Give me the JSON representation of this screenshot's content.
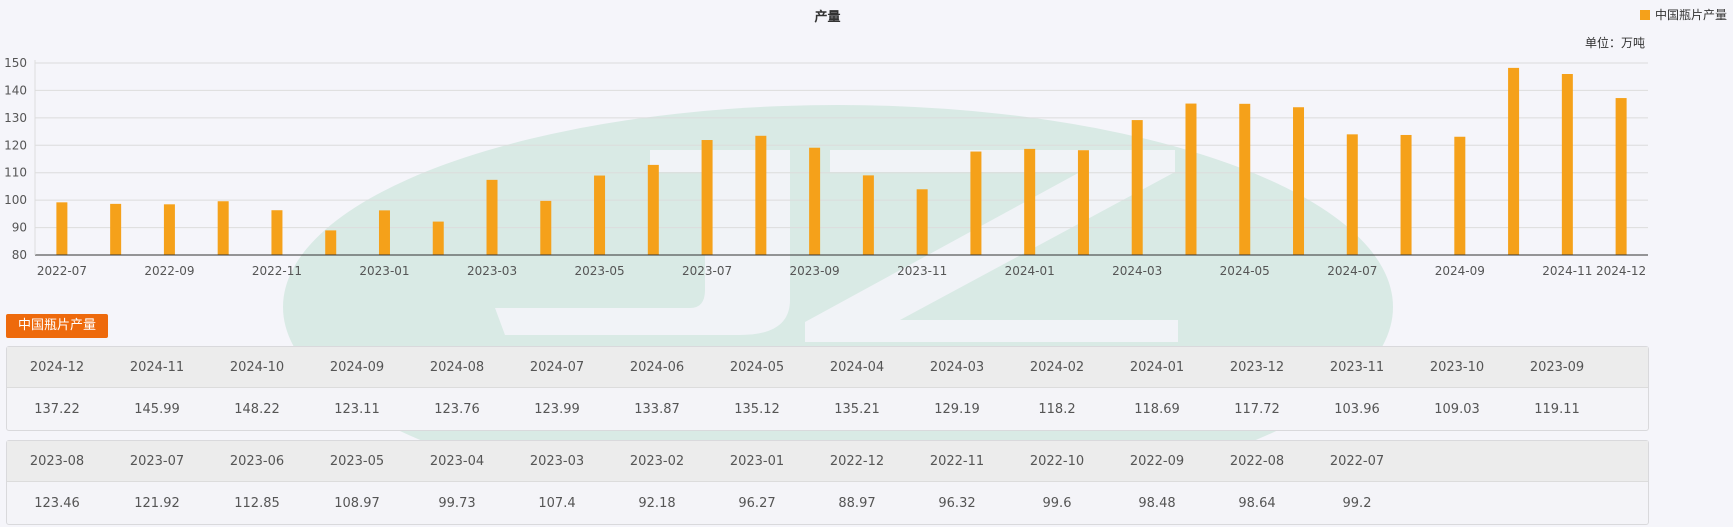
{
  "chart_data": {
    "type": "bar",
    "title": "产量",
    "unit": "单位：万吨",
    "legend": {
      "position": "top-right"
    },
    "series": [
      {
        "name": "中国瓶片产量",
        "color": "#f5a11a"
      }
    ],
    "x": [
      "2022-07",
      "2022-08",
      "2022-09",
      "2022-10",
      "2022-11",
      "2022-12",
      "2023-01",
      "2023-02",
      "2023-03",
      "2023-04",
      "2023-05",
      "2023-06",
      "2023-07",
      "2023-08",
      "2023-09",
      "2023-10",
      "2023-11",
      "2023-12",
      "2024-01",
      "2024-02",
      "2024-03",
      "2024-04",
      "2024-05",
      "2024-06",
      "2024-07",
      "2024-08",
      "2024-09",
      "2024-10",
      "2024-11",
      "2024-12"
    ],
    "values": [
      99.2,
      98.64,
      98.48,
      99.6,
      96.32,
      88.97,
      96.27,
      92.18,
      107.4,
      99.73,
      108.97,
      112.85,
      121.92,
      123.46,
      119.11,
      109.03,
      103.96,
      117.72,
      118.69,
      118.2,
      129.19,
      135.21,
      135.12,
      133.87,
      123.99,
      123.76,
      123.11,
      148.22,
      145.99,
      137.22
    ],
    "x_tick_labels": [
      "2022-07",
      "2022-09",
      "2022-11",
      "2023-01",
      "2023-03",
      "2023-05",
      "2023-07",
      "2023-09",
      "2023-11",
      "2024-01",
      "2024-03",
      "2024-05",
      "2024-07",
      "2024-09",
      "2024-11",
      "2024-12"
    ],
    "ylim": [
      80,
      150
    ],
    "y_ticks": [
      80,
      90,
      100,
      110,
      120,
      130,
      140,
      150
    ],
    "grid": true
  },
  "section_tag": "中国瓶片产量",
  "table_1": {
    "headers": [
      "2024-12",
      "2024-11",
      "2024-10",
      "2024-09",
      "2024-08",
      "2024-07",
      "2024-06",
      "2024-05",
      "2024-04",
      "2024-03",
      "2024-02",
      "2024-01",
      "2023-12",
      "2023-11",
      "2023-10",
      "2023-09"
    ],
    "values": [
      "137.22",
      "145.99",
      "148.22",
      "123.11",
      "123.76",
      "123.99",
      "133.87",
      "135.12",
      "135.21",
      "129.19",
      "118.2",
      "118.69",
      "117.72",
      "103.96",
      "109.03",
      "119.11"
    ]
  },
  "table_2": {
    "headers": [
      "2023-08",
      "2023-07",
      "2023-06",
      "2023-05",
      "2023-04",
      "2023-03",
      "2023-02",
      "2023-01",
      "2022-12",
      "2022-11",
      "2022-10",
      "2022-09",
      "2022-08",
      "2022-07"
    ],
    "values": [
      "123.46",
      "121.92",
      "112.85",
      "108.97",
      "99.73",
      "107.4",
      "92.18",
      "96.27",
      "88.97",
      "96.32",
      "99.6",
      "98.48",
      "98.64",
      "99.2"
    ]
  }
}
